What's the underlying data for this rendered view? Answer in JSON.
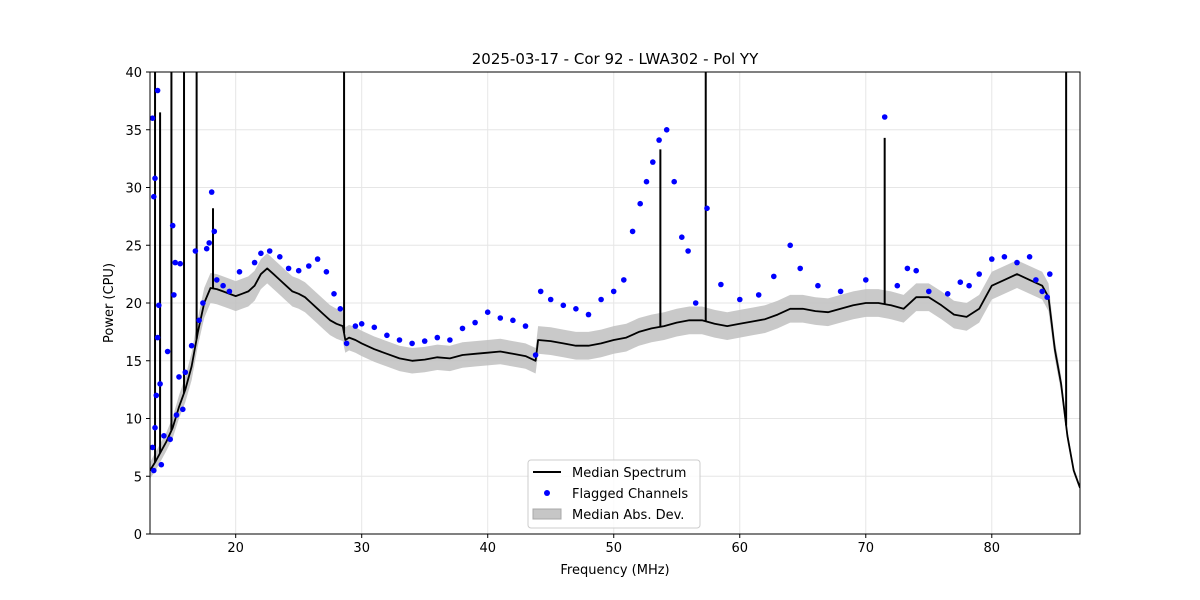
{
  "chart_data": {
    "type": "line",
    "title": "2025-03-17 - Cor 92 - LWA302 - Pol YY",
    "xlabel": "Frequency (MHz)",
    "ylabel": "Power (CPU)",
    "xlim": [
      13.2,
      87.0
    ],
    "ylim": [
      0,
      40
    ],
    "xticks": [
      20,
      30,
      40,
      50,
      60,
      70,
      80
    ],
    "yticks": [
      0,
      5,
      10,
      15,
      20,
      25,
      30,
      35,
      40
    ],
    "grid": true,
    "legend_position": "bottom-center",
    "legend": [
      "Median Spectrum",
      "Flagged Channels",
      "Median Abs. Dev."
    ],
    "colors": {
      "spectrum": "#000000",
      "flagged": "#0000ff",
      "mad": "#bfbfbf",
      "grid": "#e6e6e6"
    },
    "series": [
      {
        "name": "Median Spectrum",
        "x": [
          13.2,
          13.6,
          14.0,
          14.5,
          15.0,
          15.5,
          16.0,
          16.5,
          17.0,
          17.5,
          18.0,
          18.5,
          19.0,
          19.5,
          20.0,
          20.5,
          21.0,
          21.5,
          22.0,
          22.5,
          23.0,
          23.5,
          24.0,
          24.5,
          25.0,
          25.5,
          26.0,
          26.5,
          27.0,
          27.5,
          28.0,
          28.5,
          28.7,
          29.0,
          29.5,
          30.0,
          31.0,
          32.0,
          33.0,
          34.0,
          35.0,
          36.0,
          37.0,
          38.0,
          39.0,
          40.0,
          41.0,
          42.0,
          43.0,
          43.8,
          44.0,
          45.0,
          46.0,
          47.0,
          48.0,
          49.0,
          50.0,
          51.0,
          52.0,
          53.0,
          54.0,
          55.0,
          56.0,
          57.0,
          58.0,
          59.0,
          60.0,
          61.0,
          62.0,
          63.0,
          64.0,
          65.0,
          66.0,
          67.0,
          68.0,
          69.0,
          70.0,
          71.0,
          72.0,
          73.0,
          74.0,
          75.0,
          76.0,
          77.0,
          78.0,
          79.0,
          79.5,
          80.0,
          81.0,
          82.0,
          83.0,
          84.0,
          84.5,
          85.0,
          85.5,
          86.0,
          86.5,
          87.0
        ],
        "values": [
          5.5,
          6.2,
          7.0,
          8.0,
          9.2,
          11.0,
          12.5,
          14.5,
          17.5,
          20.0,
          21.3,
          21.2,
          21.0,
          20.8,
          20.6,
          20.8,
          21.0,
          21.5,
          22.5,
          23.0,
          22.5,
          22.0,
          21.5,
          21.0,
          20.8,
          20.5,
          20.0,
          19.5,
          19.0,
          18.5,
          18.2,
          18.0,
          16.8,
          17.0,
          16.8,
          16.5,
          16.0,
          15.6,
          15.2,
          15.0,
          15.1,
          15.3,
          15.2,
          15.5,
          15.6,
          15.7,
          15.8,
          15.6,
          15.4,
          15.0,
          16.8,
          16.7,
          16.5,
          16.3,
          16.3,
          16.5,
          16.8,
          17.0,
          17.5,
          17.8,
          18.0,
          18.3,
          18.5,
          18.5,
          18.2,
          18.0,
          18.2,
          18.4,
          18.6,
          19.0,
          19.5,
          19.5,
          19.3,
          19.2,
          19.5,
          19.8,
          20.0,
          20.0,
          19.8,
          19.5,
          20.5,
          20.5,
          19.8,
          19.0,
          18.8,
          19.5,
          20.5,
          21.5,
          22.0,
          22.5,
          22.0,
          21.5,
          20.5,
          16.0,
          13.0,
          8.5,
          5.5,
          4.0
        ]
      },
      {
        "name": "Median Abs. Dev.",
        "x": [
          13.2,
          13.6,
          14.0,
          14.5,
          15.0,
          15.5,
          16.0,
          16.5,
          17.0,
          17.5,
          18.0,
          18.5,
          19.0,
          19.5,
          20.0,
          20.5,
          21.0,
          21.5,
          22.0,
          22.5,
          23.0,
          23.5,
          24.0,
          24.5,
          25.0,
          25.5,
          26.0,
          26.5,
          27.0,
          27.5,
          28.0,
          28.5,
          28.7,
          29.0,
          29.5,
          30.0,
          31.0,
          32.0,
          33.0,
          34.0,
          35.0,
          36.0,
          37.0,
          38.0,
          39.0,
          40.0,
          41.0,
          42.0,
          43.0,
          43.8,
          44.0,
          45.0,
          46.0,
          47.0,
          48.0,
          49.0,
          50.0,
          51.0,
          52.0,
          53.0,
          54.0,
          55.0,
          56.0,
          57.0,
          58.0,
          59.0,
          60.0,
          61.0,
          62.0,
          63.0,
          64.0,
          65.0,
          66.0,
          67.0,
          68.0,
          69.0,
          70.0,
          71.0,
          72.0,
          73.0,
          74.0,
          75.0,
          76.0,
          77.0,
          78.0,
          79.0,
          79.5,
          80.0,
          81.0,
          82.0,
          83.0,
          84.0,
          84.5,
          85.0,
          85.5,
          86.0,
          86.5,
          87.0
        ],
        "lower": [
          4.8,
          5.4,
          6.2,
          7.2,
          8.3,
          10.0,
          11.4,
          13.3,
          16.3,
          18.7,
          20.0,
          19.9,
          19.7,
          19.5,
          19.3,
          19.5,
          19.7,
          20.2,
          21.2,
          21.7,
          21.2,
          20.7,
          20.2,
          19.7,
          19.5,
          19.2,
          18.7,
          18.2,
          17.7,
          17.2,
          16.9,
          16.7,
          15.7,
          15.9,
          15.7,
          15.4,
          14.9,
          14.5,
          14.1,
          13.9,
          14.0,
          14.2,
          14.1,
          14.4,
          14.5,
          14.6,
          14.7,
          14.5,
          14.3,
          13.9,
          15.6,
          15.5,
          15.3,
          15.1,
          15.1,
          15.3,
          15.6,
          15.8,
          16.3,
          16.6,
          16.8,
          17.1,
          17.3,
          17.3,
          17.0,
          16.8,
          17.0,
          17.2,
          17.4,
          17.8,
          18.3,
          18.3,
          18.1,
          18.0,
          18.3,
          18.6,
          18.8,
          18.8,
          18.6,
          18.3,
          19.3,
          19.3,
          18.6,
          17.8,
          17.6,
          18.3,
          19.3,
          20.3,
          20.8,
          21.3,
          20.8,
          20.3,
          19.3,
          15.2,
          12.3,
          8.0,
          5.2,
          3.8
        ],
        "upper": [
          6.2,
          7.0,
          7.8,
          8.8,
          10.1,
          12.0,
          13.6,
          15.7,
          18.7,
          21.3,
          22.6,
          22.5,
          22.3,
          22.1,
          21.9,
          22.1,
          22.3,
          22.8,
          23.8,
          24.3,
          23.8,
          23.3,
          22.8,
          22.3,
          22.1,
          21.8,
          21.3,
          20.8,
          20.3,
          19.8,
          19.5,
          19.3,
          17.9,
          18.1,
          17.9,
          17.6,
          17.1,
          16.7,
          16.3,
          16.1,
          16.2,
          16.4,
          16.3,
          16.6,
          16.7,
          16.8,
          16.9,
          16.7,
          16.5,
          16.1,
          18.0,
          17.9,
          17.7,
          17.5,
          17.5,
          17.7,
          18.0,
          18.2,
          18.7,
          19.0,
          19.2,
          19.5,
          19.7,
          19.7,
          19.4,
          19.2,
          19.4,
          19.6,
          19.8,
          20.2,
          20.7,
          20.7,
          20.5,
          20.4,
          20.7,
          21.0,
          21.2,
          21.2,
          21.0,
          20.7,
          21.7,
          21.7,
          21.0,
          20.2,
          20.0,
          20.7,
          21.7,
          22.7,
          23.2,
          23.7,
          23.2,
          22.7,
          21.7,
          16.8,
          13.7,
          9.0,
          5.8,
          4.2
        ]
      }
    ],
    "spikes": [
      {
        "x": 13.6,
        "y": 40
      },
      {
        "x": 14.0,
        "y": 36.5
      },
      {
        "x": 14.9,
        "y": 40
      },
      {
        "x": 15.9,
        "y": 40
      },
      {
        "x": 16.9,
        "y": 40
      },
      {
        "x": 18.2,
        "y": 28.2
      },
      {
        "x": 28.6,
        "y": 40
      },
      {
        "x": 53.7,
        "y": 33.3
      },
      {
        "x": 57.3,
        "y": 40
      },
      {
        "x": 71.5,
        "y": 34.3
      },
      {
        "x": 85.9,
        "y": 40
      }
    ],
    "flagged_points": [
      {
        "x": 13.4,
        "y": 36.0
      },
      {
        "x": 13.6,
        "y": 30.8
      },
      {
        "x": 13.5,
        "y": 29.2
      },
      {
        "x": 13.8,
        "y": 38.4
      },
      {
        "x": 13.4,
        "y": 7.5
      },
      {
        "x": 13.5,
        "y": 5.5
      },
      {
        "x": 13.6,
        "y": 9.2
      },
      {
        "x": 13.7,
        "y": 12.0
      },
      {
        "x": 13.8,
        "y": 17.0
      },
      {
        "x": 13.9,
        "y": 19.8
      },
      {
        "x": 14.0,
        "y": 13.0
      },
      {
        "x": 14.1,
        "y": 6.0
      },
      {
        "x": 14.3,
        "y": 8.5
      },
      {
        "x": 14.6,
        "y": 15.8
      },
      {
        "x": 14.8,
        "y": 8.2
      },
      {
        "x": 15.0,
        "y": 26.7
      },
      {
        "x": 15.1,
        "y": 20.7
      },
      {
        "x": 15.2,
        "y": 23.5
      },
      {
        "x": 15.3,
        "y": 10.3
      },
      {
        "x": 15.5,
        "y": 13.6
      },
      {
        "x": 15.6,
        "y": 23.4
      },
      {
        "x": 15.8,
        "y": 10.8
      },
      {
        "x": 16.0,
        "y": 14.0
      },
      {
        "x": 16.5,
        "y": 16.3
      },
      {
        "x": 16.8,
        "y": 24.5
      },
      {
        "x": 17.1,
        "y": 18.5
      },
      {
        "x": 17.4,
        "y": 20.0
      },
      {
        "x": 17.7,
        "y": 24.7
      },
      {
        "x": 17.9,
        "y": 25.2
      },
      {
        "x": 18.1,
        "y": 29.6
      },
      {
        "x": 18.3,
        "y": 26.2
      },
      {
        "x": 18.5,
        "y": 22.0
      },
      {
        "x": 19.0,
        "y": 21.5
      },
      {
        "x": 19.5,
        "y": 21.0
      },
      {
        "x": 20.3,
        "y": 22.7
      },
      {
        "x": 21.5,
        "y": 23.5
      },
      {
        "x": 22.0,
        "y": 24.3
      },
      {
        "x": 22.7,
        "y": 24.5
      },
      {
        "x": 23.5,
        "y": 24.0
      },
      {
        "x": 24.2,
        "y": 23.0
      },
      {
        "x": 25.0,
        "y": 22.8
      },
      {
        "x": 25.8,
        "y": 23.2
      },
      {
        "x": 26.5,
        "y": 23.8
      },
      {
        "x": 27.2,
        "y": 22.7
      },
      {
        "x": 27.8,
        "y": 20.8
      },
      {
        "x": 28.3,
        "y": 19.5
      },
      {
        "x": 28.8,
        "y": 16.5
      },
      {
        "x": 29.5,
        "y": 18.0
      },
      {
        "x": 30.0,
        "y": 18.2
      },
      {
        "x": 31.0,
        "y": 17.9
      },
      {
        "x": 32.0,
        "y": 17.2
      },
      {
        "x": 33.0,
        "y": 16.8
      },
      {
        "x": 34.0,
        "y": 16.5
      },
      {
        "x": 35.0,
        "y": 16.7
      },
      {
        "x": 36.0,
        "y": 17.0
      },
      {
        "x": 37.0,
        "y": 16.8
      },
      {
        "x": 38.0,
        "y": 17.8
      },
      {
        "x": 39.0,
        "y": 18.3
      },
      {
        "x": 40.0,
        "y": 19.2
      },
      {
        "x": 41.0,
        "y": 18.7
      },
      {
        "x": 42.0,
        "y": 18.5
      },
      {
        "x": 43.0,
        "y": 18.0
      },
      {
        "x": 43.8,
        "y": 15.5
      },
      {
        "x": 44.2,
        "y": 21.0
      },
      {
        "x": 45.0,
        "y": 20.3
      },
      {
        "x": 46.0,
        "y": 19.8
      },
      {
        "x": 47.0,
        "y": 19.5
      },
      {
        "x": 48.0,
        "y": 19.0
      },
      {
        "x": 49.0,
        "y": 20.3
      },
      {
        "x": 50.0,
        "y": 21.0
      },
      {
        "x": 50.8,
        "y": 22.0
      },
      {
        "x": 51.5,
        "y": 26.2
      },
      {
        "x": 52.1,
        "y": 28.6
      },
      {
        "x": 52.6,
        "y": 30.5
      },
      {
        "x": 53.1,
        "y": 32.2
      },
      {
        "x": 53.6,
        "y": 34.1
      },
      {
        "x": 54.2,
        "y": 35.0
      },
      {
        "x": 54.8,
        "y": 30.5
      },
      {
        "x": 55.4,
        "y": 25.7
      },
      {
        "x": 55.9,
        "y": 24.5
      },
      {
        "x": 56.5,
        "y": 20.0
      },
      {
        "x": 57.4,
        "y": 28.2
      },
      {
        "x": 58.5,
        "y": 21.6
      },
      {
        "x": 60.0,
        "y": 20.3
      },
      {
        "x": 61.5,
        "y": 20.7
      },
      {
        "x": 62.7,
        "y": 22.3
      },
      {
        "x": 64.0,
        "y": 25.0
      },
      {
        "x": 64.8,
        "y": 23.0
      },
      {
        "x": 66.2,
        "y": 21.5
      },
      {
        "x": 68.0,
        "y": 21.0
      },
      {
        "x": 70.0,
        "y": 22.0
      },
      {
        "x": 71.5,
        "y": 36.1
      },
      {
        "x": 72.5,
        "y": 21.5
      },
      {
        "x": 73.3,
        "y": 23.0
      },
      {
        "x": 74.0,
        "y": 22.8
      },
      {
        "x": 75.0,
        "y": 21.0
      },
      {
        "x": 76.5,
        "y": 20.8
      },
      {
        "x": 77.5,
        "y": 21.8
      },
      {
        "x": 78.2,
        "y": 21.5
      },
      {
        "x": 79.0,
        "y": 22.5
      },
      {
        "x": 80.0,
        "y": 23.8
      },
      {
        "x": 81.0,
        "y": 24.0
      },
      {
        "x": 82.0,
        "y": 23.5
      },
      {
        "x": 83.0,
        "y": 24.0
      },
      {
        "x": 83.5,
        "y": 22.0
      },
      {
        "x": 84.0,
        "y": 21.0
      },
      {
        "x": 84.4,
        "y": 20.5
      },
      {
        "x": 84.6,
        "y": 22.5
      }
    ]
  }
}
